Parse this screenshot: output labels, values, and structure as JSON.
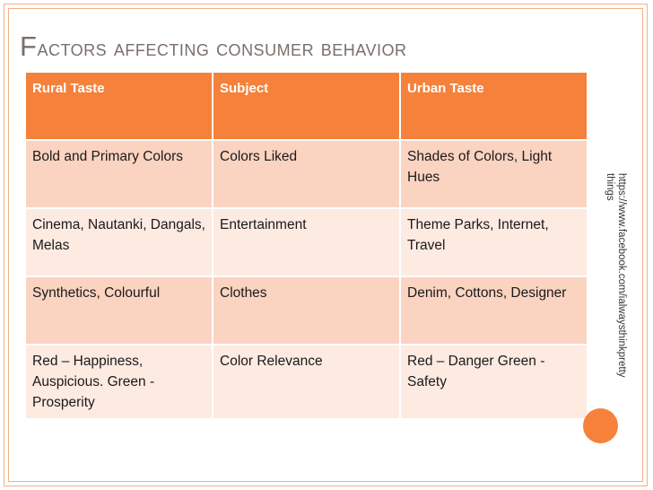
{
  "slide": {
    "title_first": "F",
    "title_rest": "actors affecting consumer behavior",
    "source_url": "https://www.facebook.com/ialwaysthinkpretty things"
  },
  "table": {
    "headers": [
      "Rural Taste",
      "Subject",
      "Urban Taste"
    ],
    "rows": [
      [
        "Bold and Primary Colors",
        "Colors Liked",
        "Shades of Colors, Light Hues"
      ],
      [
        "Cinema, Nautanki, Dangals, Melas",
        "Entertainment",
        "Theme Parks, Internet, Travel"
      ],
      [
        "Synthetics, Colourful",
        "Clothes",
        "Denim, Cottons, Designer"
      ],
      [
        "Red – Happiness, Auspicious. Green - Prosperity",
        "Color Relevance",
        "Red – Danger Green - Safety"
      ]
    ]
  },
  "colors": {
    "accent": "#f5813a",
    "row_dark": "#fbd3c1",
    "row_light": "#fdeae1",
    "title": "#7a6f6a"
  }
}
